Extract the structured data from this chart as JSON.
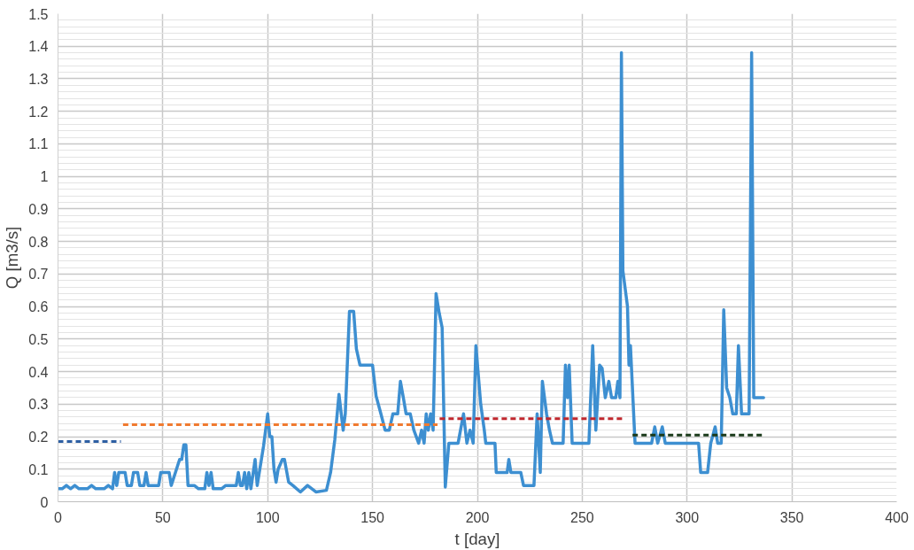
{
  "chart_data": {
    "type": "line",
    "xlabel": "t [day]",
    "ylabel": "Q [m3/s]",
    "xlim": [
      0,
      400
    ],
    "ylim": [
      0,
      1.5
    ],
    "xticks": [
      0,
      50,
      100,
      150,
      200,
      250,
      300,
      350,
      400
    ],
    "yticks": [
      0,
      0.1,
      0.2,
      0.3,
      0.4,
      0.5,
      0.6,
      0.7,
      0.8,
      0.9,
      1,
      1.1,
      1.2,
      1.3,
      1.4,
      1.5
    ],
    "grid": true,
    "marker": "none",
    "series": [
      {
        "color": "#3d8fd1",
        "line_style": "solid",
        "x": [
          0,
          2,
          4,
          6,
          8,
          10,
          14,
          16,
          18,
          22,
          24,
          26,
          27,
          28,
          29,
          32,
          33,
          35,
          36,
          38,
          39,
          41,
          42,
          43,
          48,
          49,
          53,
          54,
          56,
          58,
          59,
          60,
          61,
          62,
          65,
          67,
          70,
          71,
          72,
          73,
          74,
          78,
          80,
          85,
          86,
          87,
          88,
          89,
          90,
          91,
          92,
          94,
          95,
          97,
          98,
          100,
          101,
          102,
          103,
          104,
          105,
          107,
          108,
          110,
          112,
          115.6,
          119,
          123,
          128,
          130,
          132,
          134,
          136,
          137,
          139,
          141,
          142.3,
          144,
          150,
          151.7,
          154,
          156,
          158,
          159.7,
          162,
          163.3,
          164.7,
          166,
          168,
          169.7,
          172,
          173.4,
          174.6,
          175.6,
          176.6,
          177.7,
          178.9,
          180.3,
          181.8,
          183.2,
          184.7,
          186.4,
          190.8,
          193.4,
          195,
          196.5,
          198,
          199.3,
          201.6,
          203.3,
          204,
          208.4,
          209,
          214.2,
          215,
          216,
          220.7,
          222,
          227,
          228.5,
          230,
          231,
          233,
          234.4,
          235.8,
          240.9,
          242,
          243,
          243.8,
          245.2,
          253.2,
          255,
          256.5,
          258.3,
          259.5,
          261,
          262.7,
          264,
          266,
          267,
          268,
          268.7,
          269.4,
          271.6,
          272.3,
          273,
          275.2,
          283.1,
          284.6,
          286,
          288.2,
          289.6,
          305.5,
          306.5,
          309.8,
          311.3,
          313.4,
          314.6,
          316.3,
          317.5,
          318.9,
          320.4,
          321.8,
          323.5,
          324.5,
          326,
          329.6,
          330.8,
          331.8,
          336.5
        ],
        "values": [
          0.04,
          0.04,
          0.05,
          0.04,
          0.05,
          0.04,
          0.04,
          0.05,
          0.04,
          0.04,
          0.05,
          0.04,
          0.09,
          0.05,
          0.09,
          0.09,
          0.05,
          0.05,
          0.09,
          0.09,
          0.05,
          0.05,
          0.09,
          0.05,
          0.05,
          0.09,
          0.09,
          0.05,
          0.09,
          0.13,
          0.13,
          0.175,
          0.175,
          0.05,
          0.05,
          0.04,
          0.04,
          0.09,
          0.05,
          0.09,
          0.04,
          0.04,
          0.05,
          0.05,
          0.09,
          0.05,
          0.05,
          0.09,
          0.04,
          0.09,
          0.04,
          0.13,
          0.05,
          0.13,
          0.17,
          0.27,
          0.2,
          0.2,
          0.1,
          0.06,
          0.1,
          0.13,
          0.13,
          0.06,
          0.05,
          0.03,
          0.05,
          0.03,
          0.035,
          0.09,
          0.19,
          0.33,
          0.22,
          0.27,
          0.585,
          0.585,
          0.47,
          0.42,
          0.42,
          0.325,
          0.27,
          0.22,
          0.22,
          0.27,
          0.27,
          0.37,
          0.32,
          0.27,
          0.27,
          0.22,
          0.18,
          0.22,
          0.18,
          0.27,
          0.22,
          0.27,
          0.22,
          0.64,
          0.58,
          0.535,
          0.045,
          0.18,
          0.18,
          0.27,
          0.18,
          0.22,
          0.18,
          0.48,
          0.3,
          0.22,
          0.18,
          0.18,
          0.09,
          0.09,
          0.13,
          0.09,
          0.09,
          0.05,
          0.05,
          0.27,
          0.09,
          0.37,
          0.27,
          0.22,
          0.18,
          0.18,
          0.42,
          0.32,
          0.42,
          0.18,
          0.18,
          0.48,
          0.22,
          0.42,
          0.41,
          0.32,
          0.37,
          0.32,
          0.32,
          0.37,
          0.32,
          1.38,
          0.71,
          0.6,
          0.42,
          0.48,
          0.18,
          0.18,
          0.23,
          0.18,
          0.23,
          0.18,
          0.18,
          0.09,
          0.09,
          0.18,
          0.23,
          0.18,
          0.18,
          0.59,
          0.35,
          0.32,
          0.27,
          0.27,
          0.48,
          0.27,
          0.27,
          1.38,
          0.32,
          0.32
        ]
      },
      {
        "color": "#2e5fa3",
        "line_style": "dashed",
        "x": [
          0,
          30
        ],
        "values": [
          0.185,
          0.185
        ]
      },
      {
        "color": "#f07a2f",
        "line_style": "dashed",
        "x": [
          31,
          181
        ],
        "values": [
          0.237,
          0.237
        ]
      },
      {
        "color": "#c0272d",
        "line_style": "dashed",
        "x": [
          182,
          270
        ],
        "values": [
          0.255,
          0.255
        ]
      },
      {
        "color": "#1a3a1a",
        "line_style": "dashed",
        "x": [
          274,
          336
        ],
        "values": [
          0.205,
          0.205
        ]
      }
    ]
  }
}
